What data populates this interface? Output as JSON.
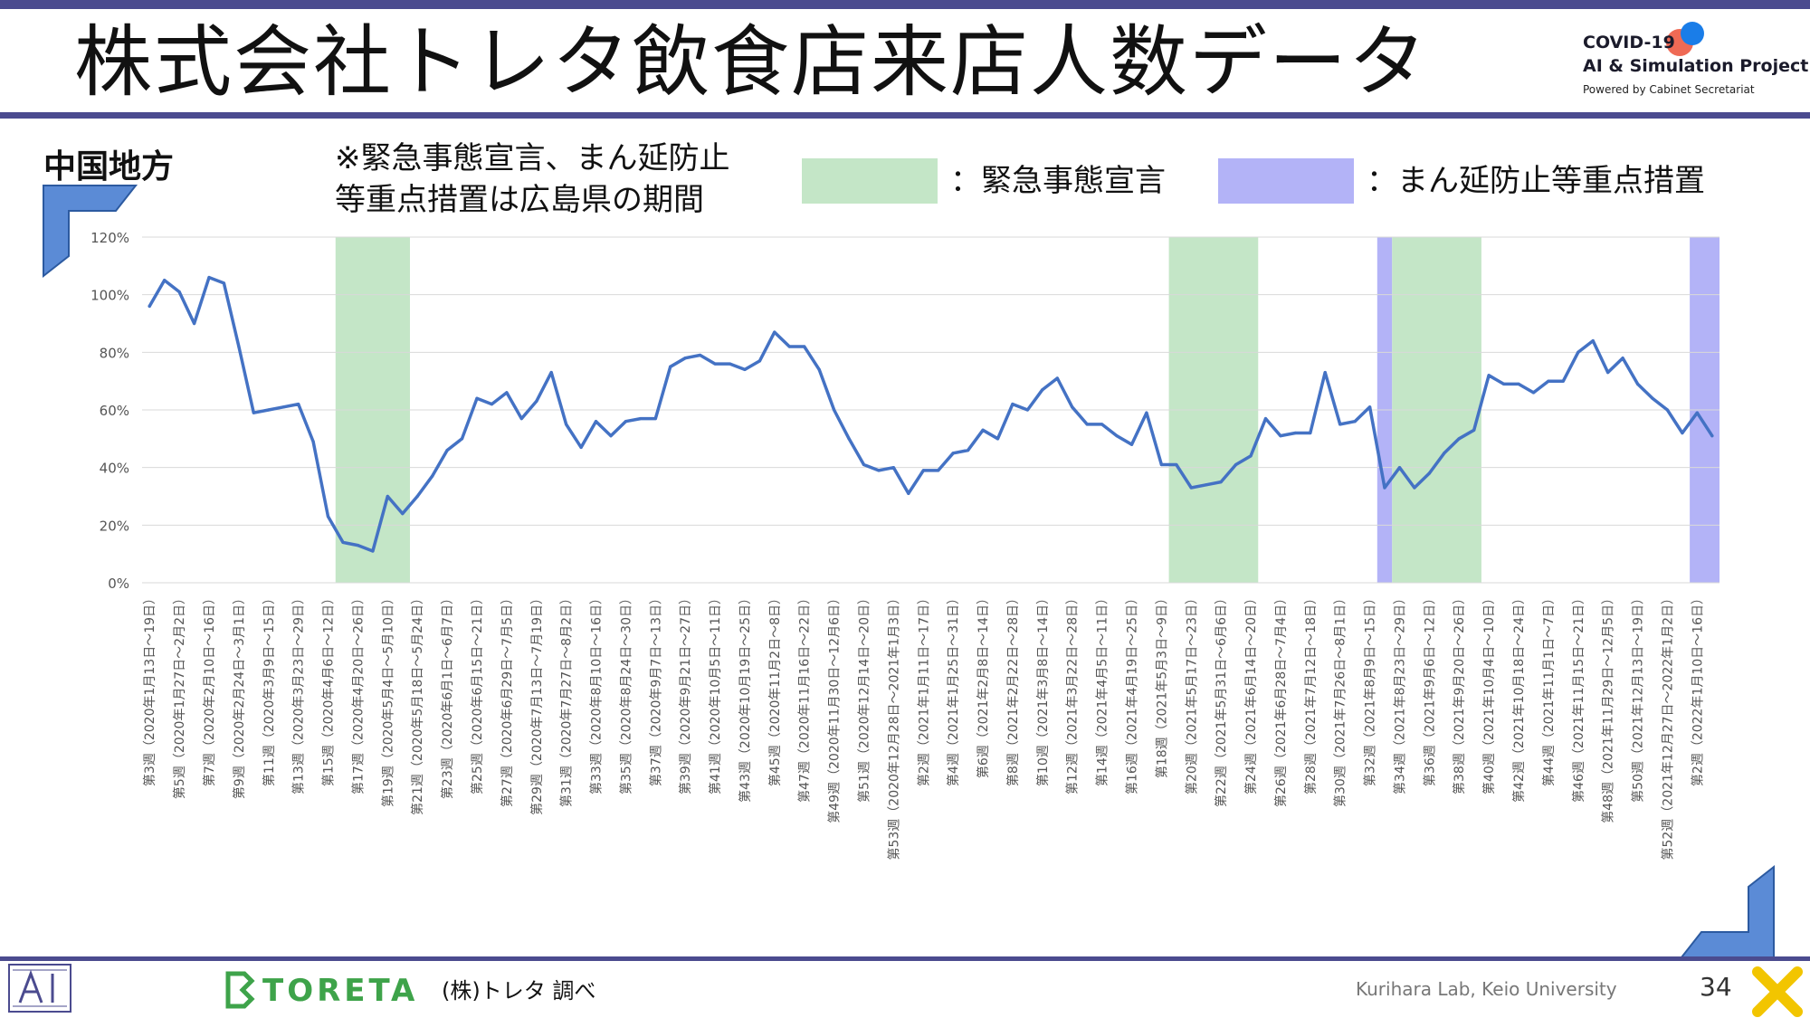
{
  "page": {
    "title": "株式会社トレタ飲食店来店人数データ",
    "region": "中国地方",
    "note_line1": "※緊急事態宣言、まん延防止",
    "note_line2": "等重点措置は広島県の期間",
    "legend_emergency": "：緊急事態宣言",
    "legend_priority": "：まん延防止等重点措置",
    "source": "(株)トレタ 調べ",
    "lab": "Kurihara Lab, Keio University",
    "page_number": "34",
    "logo_line1": "COVID-19",
    "logo_line2": "AI & Simulation Project",
    "logo_line3": "Powered by Cabinet Secretariat",
    "toreta_word": "TORETA"
  },
  "colors": {
    "accent_bar": "#4b4b8f",
    "line": "#4472c4",
    "emergency": "#c4e6c7",
    "priority": "#b3b3f7",
    "grid": "#d9d9d9"
  },
  "chart_data": {
    "type": "line",
    "title": "",
    "xlabel": "",
    "ylabel": "",
    "ylim": [
      0,
      1.2
    ],
    "y_ticks": [
      "0%",
      "20%",
      "40%",
      "60%",
      "80%",
      "100%",
      "120%"
    ],
    "grid": true,
    "x_tick_labels": [
      "第3週（2020年1月13日～19日）",
      "第5週（2020年1月27日～2月2日）",
      "第7週（2020年2月10日～16日）",
      "第9週（2020年2月24日～3月1日）",
      "第11週（2020年3月9日～15日）",
      "第13週（2020年3月23日～29日）",
      "第15週（2020年4月6日～12日）",
      "第17週（2020年4月20日～26日）",
      "第19週（2020年5月4日～5月10日）",
      "第21週（2020年5月18日～5月24日）",
      "第23週（2020年6月1日～6月7日）",
      "第25週（2020年6月15日～21日）",
      "第27週（2020年6月29日～7月5日）",
      "第29週（2020年7月13日～7月19日）",
      "第31週（2020年7月27日～8月2日）",
      "第33週（2020年8月10日～16日）",
      "第35週（2020年8月24日～30日）",
      "第37週（2020年9月7日～13日）",
      "第39週（2020年9月21日～27日）",
      "第41週（2020年10月5日～11日）",
      "第43週（2020年10月19日～25日）",
      "第45週（2020年11月2日～8日）",
      "第47週（2020年11月16日～22日）",
      "第49週（2020年11月30日～12月6日）",
      "第51週（2020年12月14日～20日）",
      "第53週（2020年12月28日～2021年1月3日）",
      "第2週（2021年1月11日～17日）",
      "第4週（2021年1月25日～31日）",
      "第6週（2021年2月8日～14日）",
      "第8週（2021年2月22日～28日）",
      "第10週（2021年3月8日～14日）",
      "第12週（2021年3月22日～28日）",
      "第14週（2021年4月5日～11日）",
      "第16週（2021年4月19日～25日）",
      "第18週（2021年5月3日～9日）",
      "第20週（2021年5月17日～23日）",
      "第22週（2021年5月31日～6月6日）",
      "第24週（2021年6月14日～20日）",
      "第26週（2021年6月28日～7月4日）",
      "第28週（2021年7月12日～18日）",
      "第30週（2021年7月26日～8月1日）",
      "第32週（2021年8月9日～15日）",
      "第34週（2021年8月23日～29日）",
      "第36週（2021年9月6日～12日）",
      "第38週（2021年9月20日～26日）",
      "第40週（2021年10月4日～10日）",
      "第42週（2021年10月18日～24日）",
      "第44週（2021年11月1日～7日）",
      "第46週（2021年11月15日～21日）",
      "第48週（2021年11月29日～12月5日）",
      "第50週（2021年12月13日～19日）",
      "第52週（2021年12月27日～2022年1月2日）",
      "第2週（2022年1月10日～16日）"
    ],
    "series": [
      {
        "values": [
          0.96,
          1.05,
          1.01,
          0.9,
          1.06,
          1.04,
          0.82,
          0.59,
          0.6,
          0.61,
          0.62,
          0.49,
          0.23,
          0.14,
          0.13,
          0.11,
          0.3,
          0.24,
          0.3,
          0.37,
          0.46,
          0.5,
          0.64,
          0.62,
          0.66,
          0.57,
          0.63,
          0.73,
          0.55,
          0.47,
          0.56,
          0.51,
          0.56,
          0.57,
          0.57,
          0.75,
          0.78,
          0.79,
          0.76,
          0.76,
          0.74,
          0.77,
          0.87,
          0.82,
          0.82,
          0.74,
          0.6,
          0.5,
          0.41,
          0.39,
          0.4,
          0.31,
          0.39,
          0.39,
          0.45,
          0.46,
          0.53,
          0.5,
          0.62,
          0.6,
          0.67,
          0.71,
          0.61,
          0.55,
          0.55,
          0.51,
          0.48,
          0.59,
          0.41,
          0.41,
          0.33,
          0.34,
          0.35,
          0.41,
          0.44,
          0.57,
          0.51,
          0.52,
          0.52,
          0.73,
          0.55,
          0.56,
          0.61,
          0.33,
          0.4,
          0.33,
          0.38,
          0.45,
          0.5,
          0.53,
          0.72,
          0.69,
          0.69,
          0.66,
          0.7,
          0.7,
          0.8,
          0.84,
          0.73,
          0.78,
          0.69,
          0.64,
          0.6,
          0.52,
          0.59,
          0.51
        ]
      }
    ],
    "shaded_periods": [
      {
        "kind": "emergency",
        "start_index": 12.5,
        "end_index": 17.5
      },
      {
        "kind": "emergency",
        "start_index": 68.5,
        "end_index": 74.5
      },
      {
        "kind": "priority",
        "start_index": 82.5,
        "end_index": 83.5
      },
      {
        "kind": "emergency",
        "start_index": 83.5,
        "end_index": 89.5
      },
      {
        "kind": "priority",
        "start_index": 103.5,
        "end_index": 105.5
      }
    ]
  }
}
